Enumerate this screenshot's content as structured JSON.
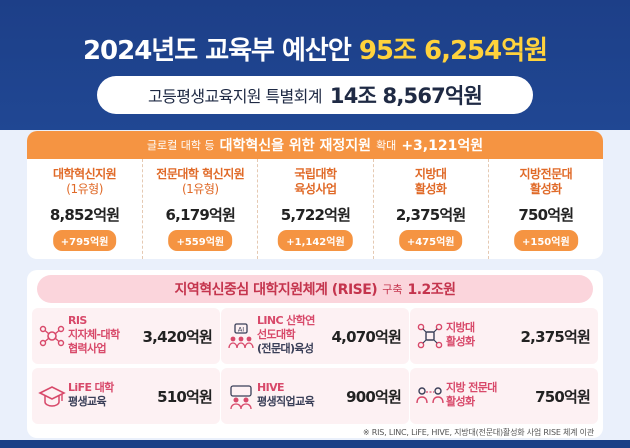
{
  "header": {
    "title_prefix": "2024년도 교육부 예산안",
    "title_amount": "95조 6,254억원",
    "sub_label": "고등평생교육지원 특별회계",
    "sub_amount": "14조 8,567억원"
  },
  "section1": {
    "head_pre": "글로컬 대학 등",
    "head_main": "대학혁신을 위한 재정지원",
    "head_mid": "확대",
    "head_amount": "+3,121억원",
    "items": [
      {
        "name1": "대학혁신지원",
        "name2": "(1유형)",
        "amount": "8,852억원",
        "increase": "+795억원"
      },
      {
        "name1": "전문대학 혁신지원",
        "name2": "(1유형)",
        "amount": "6,179억원",
        "increase": "+559억원"
      },
      {
        "name1": "국립대학",
        "name2": "육성사업",
        "amount": "5,722억원",
        "increase": "+1,142억원"
      },
      {
        "name1": "지방대",
        "name2": "활성화",
        "amount": "2,375억원",
        "increase": "+475억원"
      },
      {
        "name1": "지방전문대",
        "name2": "활성화",
        "amount": "750억원",
        "increase": "+150억원"
      }
    ]
  },
  "section2": {
    "head_main": "지역혁신중심 대학지원체계 (RISE)",
    "head_mid": "구축",
    "head_amount": "1.2조원",
    "cards": [
      {
        "l1": "RIS",
        "l2": "지자체-대학",
        "l3": "협력사업",
        "amount": "3,420억원",
        "icon": "network-icon"
      },
      {
        "l1": "LINC 산학연",
        "l2": "선도대학",
        "l3": "(전문대)육성",
        "amount": "4,070억원",
        "icon": "ai-people-icon"
      },
      {
        "l1": "지방대",
        "l2": "활성화",
        "amount": "2,375억원",
        "icon": "nodes-icon"
      },
      {
        "l1": "LiFE 대학",
        "l2": "평생교육",
        "amount": "510억원",
        "icon": "graduation-cap-icon"
      },
      {
        "l1": "HIVE",
        "l2": "평생직업교육",
        "amount": "900억원",
        "icon": "workers-icon"
      },
      {
        "l1": "지방 전문대",
        "l2": "활성화",
        "amount": "750억원",
        "icon": "people-link-icon"
      }
    ]
  },
  "footnote": "※ RIS, LINC, LiFE, HIVE, 지방대(전문대)활성화 사업 RISE 체계 이관",
  "colors": {
    "navy": "#1b3f86",
    "yellow": "#ffd23c",
    "orange": "#f59442",
    "pink": "#d8496a"
  }
}
